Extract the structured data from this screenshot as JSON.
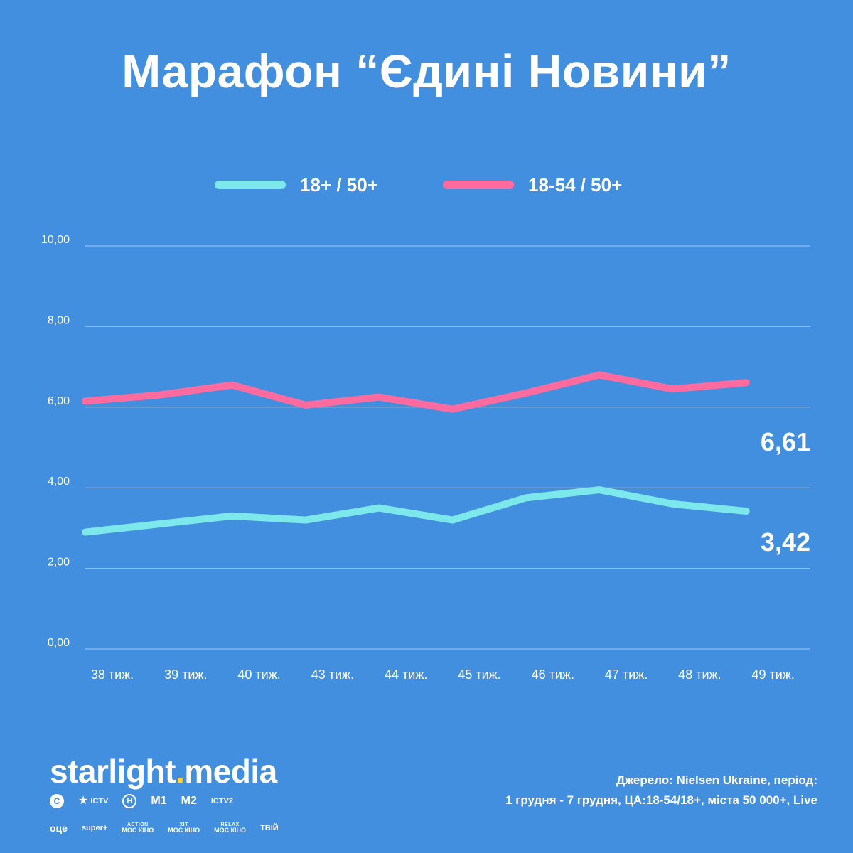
{
  "title": "Марафон “Єдині Новини”",
  "colors": {
    "background": "#438fdf",
    "series_1": "#7de8eb",
    "series_2": "#ff6b9f",
    "brand_accent": "#ffd33d"
  },
  "chart_data": {
    "type": "line",
    "title": "Марафон “Єдині Новини”",
    "categories": [
      "38 тиж.",
      "39 тиж.",
      "40 тиж.",
      "43 тиж.",
      "44 тиж.",
      "45 тиж.",
      "46 тиж.",
      "47 тиж.",
      "48 тиж.",
      "49 тиж."
    ],
    "series": [
      {
        "name": "18+ / 50+",
        "color": "#7de8eb",
        "values": [
          2.9,
          3.1,
          3.3,
          3.2,
          3.5,
          3.2,
          3.75,
          3.95,
          3.6,
          3.42
        ],
        "end_label": "3,42"
      },
      {
        "name": "18-54 / 50+",
        "color": "#ff6b9f",
        "values": [
          6.15,
          6.3,
          6.55,
          6.05,
          6.25,
          5.95,
          6.35,
          6.8,
          6.45,
          6.61
        ],
        "end_label": "6,61"
      }
    ],
    "ylim": [
      0,
      10
    ],
    "y_ticks": [
      "0,00",
      "2,00",
      "4,00",
      "6,00",
      "8,00",
      "10,00"
    ],
    "grid": true,
    "legend_position": "top-center"
  },
  "footer": {
    "brand_part1": "starlight",
    "brand_dot": ".",
    "brand_part2": "media",
    "channels_row1": [
      {
        "icon": "stb-icon",
        "label": "С"
      },
      {
        "icon": "ictv-icon",
        "label": "ICTV"
      },
      {
        "icon": "novyi-icon",
        "label": "Н"
      },
      {
        "icon": "m1-icon",
        "label": "М1"
      },
      {
        "icon": "m2-icon",
        "label": "М2"
      },
      {
        "icon": "ictv2-icon",
        "label": "ICTV2"
      }
    ],
    "channels_row2": [
      {
        "icon": "oce-icon",
        "label": "оце"
      },
      {
        "icon": "superplus-icon",
        "label": "super+"
      },
      {
        "icon": "action-kino-icon",
        "top": "ACTION",
        "label": "МОЄ КІНО"
      },
      {
        "icon": "hit-kino-icon",
        "top": "ХІТ",
        "label": "МОЄ КІНО"
      },
      {
        "icon": "relax-kino-icon",
        "top": "RELAX",
        "label": "МОЄ КІНО"
      },
      {
        "icon": "tviy-icon",
        "label": "ТВІЙ"
      }
    ],
    "source_line1": "Джерело: Nielsen Ukraine, період:",
    "source_line2": "1 грудня - 7 грудня, ЦА:18-54/18+, міста 50 000+, Live"
  }
}
